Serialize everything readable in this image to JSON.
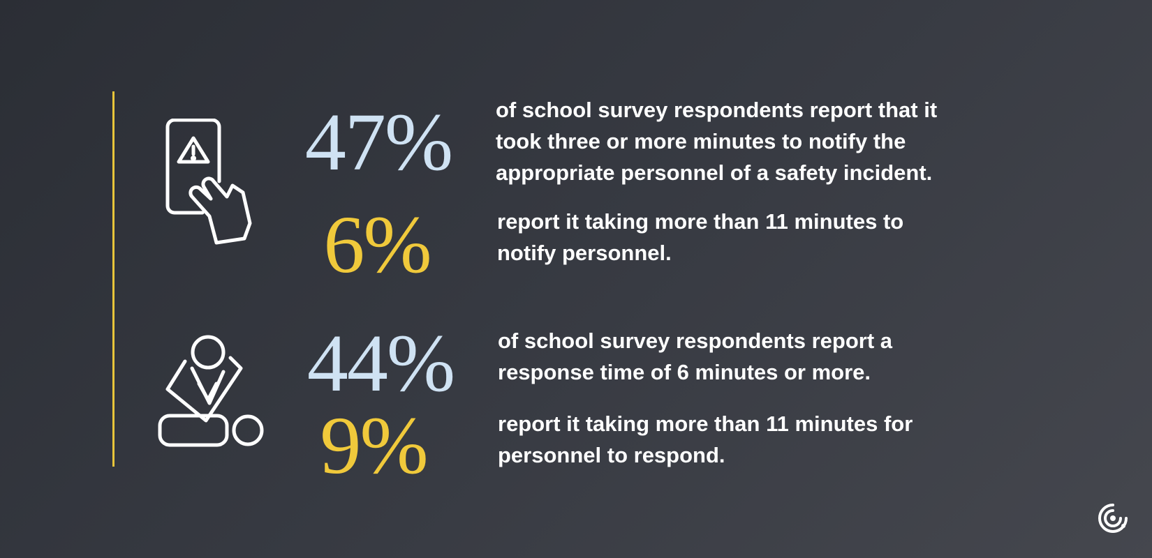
{
  "stats": [
    {
      "value": "47%",
      "text": [
        "of school survey respondents report that it",
        "took three or more minutes to notify the",
        "appropriate personnel of a safety incident."
      ]
    },
    {
      "value": "6%",
      "text": [
        "report it taking more than 11 minutes to",
        "notify personnel."
      ]
    },
    {
      "value": "44%",
      "text": [
        "of school survey respondents report a",
        "response time of 6 minutes or more."
      ]
    },
    {
      "value": "9%",
      "text": [
        "report it taking more than 11 minutes for",
        "personnel to respond."
      ]
    }
  ]
}
